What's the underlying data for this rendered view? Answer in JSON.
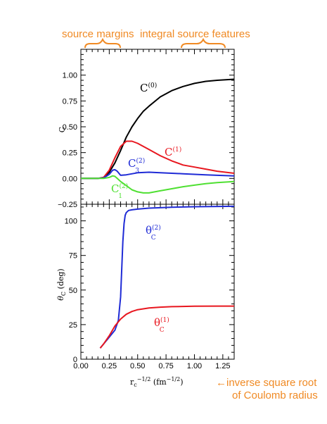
{
  "colors": {
    "black": "#000000",
    "red": "#e8171f",
    "blue": "#1f2bd6",
    "green": "#4fe032",
    "orange": "#f08a24"
  },
  "annotations": {
    "source_margins": "source margins",
    "integral_source_features": "integral source features",
    "arrow_line1": "←inverse square root",
    "arrow_line2": "of Coulomb radius"
  },
  "chart_data": [
    {
      "type": "line",
      "panel": "top",
      "ylabel": "C",
      "xlim": [
        0.0,
        1.35
      ],
      "ylim": [
        -0.25,
        1.25
      ],
      "yticks": [
        "−0.25",
        "0.00",
        "0.25",
        "0.50",
        "0.75",
        "1.00"
      ],
      "series": [
        {
          "name": "C(0)",
          "label_main": "C",
          "label_sup": "(0)",
          "label_sub": "",
          "color": "#000000",
          "x": [
            0.0,
            0.15,
            0.2,
            0.25,
            0.3,
            0.35,
            0.4,
            0.45,
            0.5,
            0.55,
            0.6,
            0.7,
            0.8,
            0.9,
            1.0,
            1.1,
            1.2,
            1.35
          ],
          "y": [
            0.0,
            0.0,
            0.01,
            0.06,
            0.15,
            0.27,
            0.4,
            0.5,
            0.58,
            0.65,
            0.7,
            0.79,
            0.85,
            0.89,
            0.92,
            0.94,
            0.95,
            0.96
          ]
        },
        {
          "name": "C(1)",
          "label_main": "C",
          "label_sup": "(1)",
          "label_sub": "",
          "color": "#e8171f",
          "x": [
            0.0,
            0.15,
            0.2,
            0.25,
            0.3,
            0.35,
            0.4,
            0.45,
            0.5,
            0.6,
            0.7,
            0.8,
            0.9,
            1.0,
            1.1,
            1.2,
            1.35
          ],
          "y": [
            0.0,
            0.0,
            0.01,
            0.08,
            0.2,
            0.31,
            0.36,
            0.36,
            0.34,
            0.28,
            0.22,
            0.17,
            0.13,
            0.11,
            0.09,
            0.07,
            0.05
          ]
        },
        {
          "name": "C3(2)",
          "label_main": "C",
          "label_sup": "(2)",
          "label_sub": "3",
          "color": "#1f2bd6",
          "x": [
            0.0,
            0.15,
            0.2,
            0.25,
            0.28,
            0.3,
            0.32,
            0.35,
            0.4,
            0.5,
            0.6,
            0.7,
            0.8,
            0.9,
            1.0,
            1.1,
            1.2,
            1.35
          ],
          "y": [
            0.0,
            0.0,
            0.005,
            0.04,
            0.08,
            0.085,
            0.07,
            0.03,
            0.035,
            0.055,
            0.06,
            0.055,
            0.05,
            0.045,
            0.04,
            0.035,
            0.03,
            0.025
          ]
        },
        {
          "name": "C1(2)",
          "label_main": "C",
          "label_sup": "(2)",
          "label_sub": "1",
          "color": "#4fe032",
          "x": [
            0.0,
            0.15,
            0.2,
            0.25,
            0.28,
            0.3,
            0.32,
            0.35,
            0.4,
            0.45,
            0.5,
            0.55,
            0.6,
            0.7,
            0.8,
            0.9,
            1.0,
            1.1,
            1.2,
            1.35
          ],
          "y": [
            0.0,
            0.0,
            0.0,
            0.01,
            0.025,
            0.02,
            0.0,
            -0.03,
            -0.07,
            -0.11,
            -0.13,
            -0.14,
            -0.14,
            -0.12,
            -0.1,
            -0.08,
            -0.065,
            -0.05,
            -0.04,
            -0.03
          ]
        }
      ]
    },
    {
      "type": "line",
      "panel": "bottom",
      "xlabel": "r",
      "xlabel_sub": "c",
      "xlabel_sup": "−1/2",
      "xlabel_units": "(fm",
      "xlabel_units_sup": "−1/2",
      "xlabel_units_close": ")",
      "ylabel_symbol": "θ",
      "ylabel_sub": "C",
      "ylabel_units": "(deg)",
      "xlim": [
        0.0,
        1.35
      ],
      "ylim": [
        0,
        112
      ],
      "xticks": [
        "0.00",
        "0.25",
        "0.50",
        "0.75",
        "1.00",
        "1.25"
      ],
      "yticks": [
        "0",
        "25",
        "50",
        "75",
        "100"
      ],
      "series": [
        {
          "name": "thetaC(2)",
          "label_main": "θ",
          "label_sup": "(2)",
          "label_sub": "C",
          "color": "#1f2bd6",
          "x": [
            0.17,
            0.2,
            0.25,
            0.3,
            0.33,
            0.35,
            0.36,
            0.37,
            0.38,
            0.39,
            0.4,
            0.42,
            0.45,
            0.5,
            0.6,
            0.8,
            1.0,
            1.35
          ],
          "y": [
            8,
            11,
            16,
            21,
            28,
            45,
            65,
            85,
            98,
            104,
            106,
            107.5,
            108,
            108.5,
            109.2,
            109.8,
            110.2,
            110.5
          ]
        },
        {
          "name": "thetaC(1)",
          "label_main": "θ",
          "label_sup": "(1)",
          "label_sub": "C",
          "color": "#e8171f",
          "x": [
            0.17,
            0.2,
            0.25,
            0.3,
            0.35,
            0.4,
            0.45,
            0.5,
            0.6,
            0.7,
            0.8,
            1.0,
            1.2,
            1.35
          ],
          "y": [
            8,
            11,
            17,
            24,
            29,
            32.5,
            34.5,
            35.8,
            37,
            37.6,
            38,
            38.3,
            38.4,
            38.4
          ]
        }
      ]
    }
  ]
}
